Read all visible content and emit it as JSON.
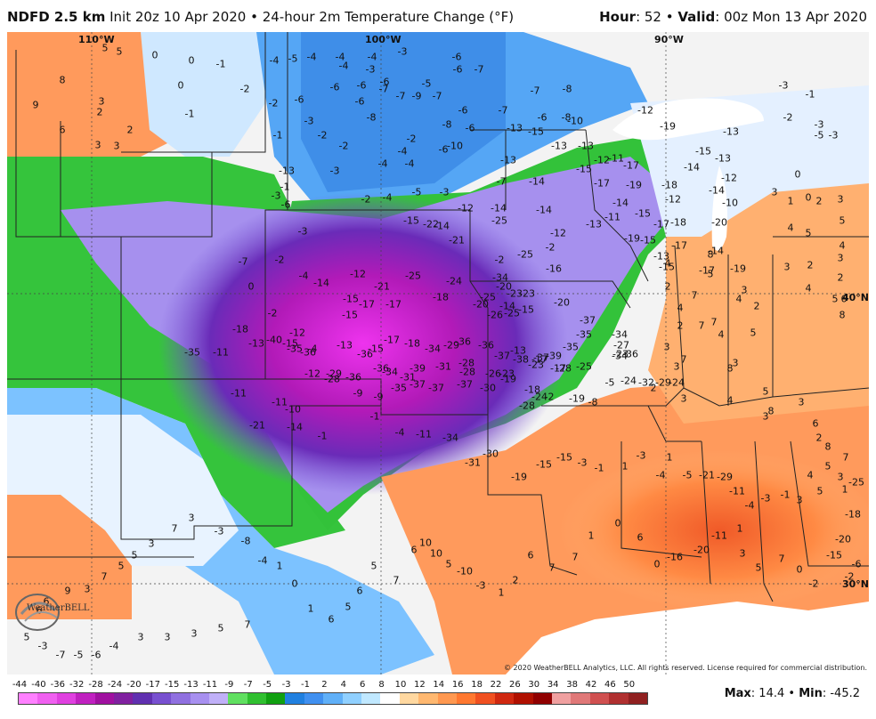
{
  "header": {
    "model": "NDFD 2.5 km",
    "desc": "Init 20z 10 Apr 2020 • 24-hour 2m Temperature Change (°F)",
    "hour_label": "Hour",
    "hour_value": ": 52 • ",
    "valid_label": "Valid",
    "valid_value": ": 00z Mon 13 Apr 2020"
  },
  "axes": {
    "lon_labels": [
      "110°W",
      "100°W",
      "90°W"
    ],
    "lat_labels": [
      "40°N",
      "30°N"
    ]
  },
  "logo_text": "WeatherBELL",
  "copyright": "© 2020 WeatherBELL Analytics, LLC. All rights reserved. License required for commercial distribution.",
  "stats": {
    "max_label": "Max",
    "max_value": ": 14.4 • ",
    "min_label": "Min",
    "min_value": ": -45.2"
  },
  "colorbar": {
    "ticks": [
      "-44",
      "-40",
      "-36",
      "-32",
      "-28",
      "-24",
      "-20",
      "-17",
      "-15",
      "-13",
      "-11",
      "-9",
      "-7",
      "-5",
      "-3",
      "-1",
      "2",
      "4",
      "6",
      "8",
      "10",
      "12",
      "14",
      "16",
      "18",
      "22",
      "26",
      "30",
      "34",
      "38",
      "42",
      "46",
      "50"
    ],
    "colors": [
      "#ff80ff",
      "#f060f0",
      "#e040e0",
      "#c020c0",
      "#a010a0",
      "#8020a0",
      "#6030b0",
      "#7850d0",
      "#9070e0",
      "#a890f0",
      "#c0b0f8",
      "#60e060",
      "#30c030",
      "#10a010",
      "#2080e0",
      "#4090f0",
      "#60b0f8",
      "#90d0ff",
      "#c0e8ff",
      "#ffffff",
      "#ffd8a0",
      "#ffb870",
      "#ff9850",
      "#ff7830",
      "#f05020",
      "#d02810",
      "#b01000",
      "#900000",
      "#f0a0a0",
      "#e07878",
      "#d05050",
      "#b03030",
      "#902020"
    ]
  },
  "map_values": [
    {
      "t": "5"
    },
    {
      "t": "5"
    },
    {
      "t": "0"
    },
    {
      "t": "0"
    },
    {
      "t": "-1"
    },
    {
      "t": "8"
    },
    {
      "t": "3"
    },
    {
      "t": "2"
    },
    {
      "t": "9"
    },
    {
      "t": "6"
    },
    {
      "t": "2"
    },
    {
      "t": "3"
    },
    {
      "t": "3"
    },
    {
      "t": "0"
    },
    {
      "t": "-1"
    },
    {
      "t": "-4"
    },
    {
      "t": "-5"
    },
    {
      "t": "-4"
    },
    {
      "t": "-4"
    },
    {
      "t": "-4"
    },
    {
      "t": "-3"
    },
    {
      "t": "-4"
    },
    {
      "t": "-3"
    },
    {
      "t": "-6"
    },
    {
      "t": "-6"
    },
    {
      "t": "-7"
    },
    {
      "t": "-6"
    },
    {
      "t": "-7"
    },
    {
      "t": "-5"
    },
    {
      "t": "-2"
    },
    {
      "t": "-6"
    },
    {
      "t": "-6"
    },
    {
      "t": "-6"
    },
    {
      "t": "-6"
    },
    {
      "t": "-8"
    },
    {
      "t": "-7"
    },
    {
      "t": "-9"
    },
    {
      "t": "-7"
    },
    {
      "t": "-8"
    },
    {
      "t": "-7"
    },
    {
      "t": "-7"
    },
    {
      "t": "-6"
    },
    {
      "t": "-6"
    },
    {
      "t": "-8"
    },
    {
      "t": "-12"
    },
    {
      "t": "-2"
    },
    {
      "t": "-3"
    },
    {
      "t": "-2"
    },
    {
      "t": "-1"
    },
    {
      "t": "-2"
    },
    {
      "t": "-2"
    },
    {
      "t": "-4"
    },
    {
      "t": "-6"
    },
    {
      "t": "-8"
    },
    {
      "t": "-13"
    },
    {
      "t": "-6"
    },
    {
      "t": "-10"
    },
    {
      "t": "-13"
    },
    {
      "t": "-10"
    },
    {
      "t": "-15"
    },
    {
      "t": "-13"
    },
    {
      "t": "-13"
    },
    {
      "t": "-12"
    },
    {
      "t": "-11"
    },
    {
      "t": "-17"
    },
    {
      "t": "-19"
    },
    {
      "t": "-15"
    },
    {
      "t": "-14"
    },
    {
      "t": "-13"
    },
    {
      "t": "-13"
    },
    {
      "t": "-12"
    },
    {
      "t": "-14"
    },
    {
      "t": "-10"
    },
    {
      "t": "-13"
    },
    {
      "t": "-3"
    },
    {
      "t": "-4"
    },
    {
      "t": "-4"
    },
    {
      "t": "-1"
    },
    {
      "t": "-3"
    },
    {
      "t": "-6"
    },
    {
      "t": "-2"
    },
    {
      "t": "-4"
    },
    {
      "t": "-5"
    },
    {
      "t": "-3"
    },
    {
      "t": "-7"
    },
    {
      "t": "-14"
    },
    {
      "t": "-15"
    },
    {
      "t": "-17"
    },
    {
      "t": "-19"
    },
    {
      "t": "-18"
    },
    {
      "t": "-12"
    },
    {
      "t": "-15"
    },
    {
      "t": "-14"
    },
    {
      "t": "-11"
    },
    {
      "t": "-14"
    },
    {
      "t": "-14"
    },
    {
      "t": "-12"
    },
    {
      "t": "-14"
    },
    {
      "t": "-15"
    },
    {
      "t": "-22"
    },
    {
      "t": "-21"
    },
    {
      "t": "-2"
    },
    {
      "t": "-25"
    },
    {
      "t": "-2"
    },
    {
      "t": "-16"
    },
    {
      "t": "-12"
    },
    {
      "t": "-13"
    },
    {
      "t": "-19"
    },
    {
      "t": "-15"
    },
    {
      "t": "-17"
    },
    {
      "t": "-18"
    },
    {
      "t": "-20"
    },
    {
      "t": "-17"
    },
    {
      "t": "-15"
    },
    {
      "t": "-13"
    },
    {
      "t": "-14"
    },
    {
      "t": "-17"
    },
    {
      "t": "-19"
    },
    {
      "t": "-25"
    },
    {
      "t": "-20"
    },
    {
      "t": "-23"
    },
    {
      "t": "-20"
    },
    {
      "t": "-25"
    },
    {
      "t": "-24"
    },
    {
      "t": "-25"
    },
    {
      "t": "-21"
    },
    {
      "t": "-12"
    },
    {
      "t": "-7"
    },
    {
      "t": "-3"
    },
    {
      "t": "-2"
    },
    {
      "t": "0"
    },
    {
      "t": "-2"
    },
    {
      "t": "-4"
    },
    {
      "t": "-14"
    },
    {
      "t": "-15"
    },
    {
      "t": "-15"
    },
    {
      "t": "-17"
    },
    {
      "t": "-17"
    },
    {
      "t": "-18"
    },
    {
      "t": "-20"
    },
    {
      "t": "-23"
    },
    {
      "t": "-34"
    },
    {
      "t": "-26"
    },
    {
      "t": "-25"
    },
    {
      "t": "-14"
    },
    {
      "t": "-15"
    },
    {
      "t": "-13"
    },
    {
      "t": "-17"
    },
    {
      "t": "-17"
    },
    {
      "t": "-25"
    },
    {
      "t": "-40"
    },
    {
      "t": "-35"
    },
    {
      "t": "-36"
    },
    {
      "t": "-29"
    },
    {
      "t": "-36"
    },
    {
      "t": "-34"
    },
    {
      "t": "-31"
    },
    {
      "t": "-29"
    },
    {
      "t": "-28"
    },
    {
      "t": "-26"
    },
    {
      "t": "-19"
    },
    {
      "t": "-23"
    },
    {
      "t": "-39"
    },
    {
      "t": "-35"
    },
    {
      "t": "-34"
    },
    {
      "t": "-36"
    },
    {
      "t": "-37"
    },
    {
      "t": "-35"
    },
    {
      "t": "-34"
    },
    {
      "t": "-27"
    },
    {
      "t": "-23"
    },
    {
      "t": "-18"
    },
    {
      "t": "-15"
    },
    {
      "t": "-4"
    },
    {
      "t": "-13"
    },
    {
      "t": "-15"
    },
    {
      "t": "-17"
    },
    {
      "t": "-18"
    },
    {
      "t": "-34"
    },
    {
      "t": "-36"
    },
    {
      "t": "-36"
    },
    {
      "t": "-37"
    },
    {
      "t": "-38"
    },
    {
      "t": "-37"
    },
    {
      "t": "-28"
    },
    {
      "t": "-35"
    },
    {
      "t": "-11"
    },
    {
      "t": "-13"
    },
    {
      "t": "-12"
    },
    {
      "t": "-12"
    },
    {
      "t": "-28"
    },
    {
      "t": "-36"
    },
    {
      "t": "-36"
    },
    {
      "t": "-39"
    },
    {
      "t": "-31"
    },
    {
      "t": "-28"
    },
    {
      "t": "-23"
    },
    {
      "t": "-18"
    },
    {
      "t": "-2"
    },
    {
      "t": "-11"
    },
    {
      "t": "-11"
    },
    {
      "t": "-10"
    },
    {
      "t": "-9"
    },
    {
      "t": "-9"
    },
    {
      "t": "-35"
    },
    {
      "t": "-37"
    },
    {
      "t": "-37"
    },
    {
      "t": "-37"
    },
    {
      "t": "-30"
    },
    {
      "t": "-28"
    },
    {
      "t": "-24"
    },
    {
      "t": "-19"
    },
    {
      "t": "-8"
    },
    {
      "t": "-5"
    },
    {
      "t": "-24"
    },
    {
      "t": "-32"
    },
    {
      "t": "-29"
    },
    {
      "t": "-24"
    },
    {
      "t": "-21"
    },
    {
      "t": "-14"
    },
    {
      "t": "-1"
    },
    {
      "t": "-1"
    },
    {
      "t": "-4"
    },
    {
      "t": "-11"
    },
    {
      "t": "-34"
    },
    {
      "t": "-31"
    },
    {
      "t": "-30"
    },
    {
      "t": "-19"
    },
    {
      "t": "-15"
    },
    {
      "t": "-15"
    },
    {
      "t": "-3"
    },
    {
      "t": "-1"
    },
    {
      "t": "1"
    },
    {
      "t": "-3"
    },
    {
      "t": "1"
    },
    {
      "t": "-4"
    },
    {
      "t": "-5"
    },
    {
      "t": "-21"
    },
    {
      "t": "-29"
    },
    {
      "t": "-11"
    },
    {
      "t": "-4"
    },
    {
      "t": "-3"
    },
    {
      "t": "-1"
    },
    {
      "t": "3"
    },
    {
      "t": "5"
    },
    {
      "t": "3"
    },
    {
      "t": "1"
    },
    {
      "t": "-25"
    },
    {
      "t": "-18"
    },
    {
      "t": "-20"
    },
    {
      "t": "-15"
    },
    {
      "t": "-6"
    },
    {
      "t": "-2"
    },
    {
      "t": "-2"
    },
    {
      "t": "0"
    },
    {
      "t": "7"
    },
    {
      "t": "5"
    },
    {
      "t": "3"
    },
    {
      "t": "1"
    },
    {
      "t": "-11"
    },
    {
      "t": "-20"
    },
    {
      "t": "-16"
    },
    {
      "t": "0"
    },
    {
      "t": "6"
    },
    {
      "t": "0"
    },
    {
      "t": "1"
    },
    {
      "t": "7"
    },
    {
      "t": "7"
    },
    {
      "t": "6"
    },
    {
      "t": "2"
    },
    {
      "t": "1"
    },
    {
      "t": "-3"
    },
    {
      "t": "-10"
    },
    {
      "t": "5"
    },
    {
      "t": "10"
    },
    {
      "t": "10"
    },
    {
      "t": "6"
    },
    {
      "t": "7"
    },
    {
      "t": "5"
    },
    {
      "t": "6"
    },
    {
      "t": "5"
    },
    {
      "t": "6"
    },
    {
      "t": "1"
    },
    {
      "t": "0"
    },
    {
      "t": "1"
    },
    {
      "t": "-4"
    },
    {
      "t": "-8"
    },
    {
      "t": "-3"
    },
    {
      "t": "3"
    },
    {
      "t": "7"
    },
    {
      "t": "3"
    },
    {
      "t": "5"
    },
    {
      "t": "5"
    },
    {
      "t": "7"
    },
    {
      "t": "3"
    },
    {
      "t": "9"
    },
    {
      "t": "6"
    },
    {
      "t": "6"
    },
    {
      "t": "5"
    },
    {
      "t": "-3"
    },
    {
      "t": "-7"
    },
    {
      "t": "-5"
    },
    {
      "t": "-6"
    },
    {
      "t": "-4"
    },
    {
      "t": "3"
    },
    {
      "t": "3"
    },
    {
      "t": "3"
    },
    {
      "t": "5"
    },
    {
      "t": "7"
    },
    {
      "t": "6"
    },
    {
      "t": "8"
    },
    {
      "t": "10"
    },
    {
      "t": "11"
    },
    {
      "t": "10"
    },
    {
      "t": "8"
    },
    {
      "t": "-4"
    },
    {
      "t": "0"
    },
    {
      "t": "1"
    },
    {
      "t": "2"
    },
    {
      "t": "3"
    },
    {
      "t": "3"
    },
    {
      "t": "8"
    },
    {
      "t": "6"
    },
    {
      "t": "4"
    },
    {
      "t": "8"
    },
    {
      "t": "9"
    },
    {
      "t": "8"
    },
    {
      "t": "8"
    },
    {
      "t": "3"
    },
    {
      "t": "-3"
    },
    {
      "t": "0"
    },
    {
      "t": "1"
    },
    {
      "t": "3"
    },
    {
      "t": "2"
    },
    {
      "t": "5"
    },
    {
      "t": "6"
    },
    {
      "t": "5"
    },
    {
      "t": "3"
    },
    {
      "t": "3"
    },
    {
      "t": "8"
    },
    {
      "t": "30°"
    },
    {
      "t": "0"
    },
    {
      "t": "-2"
    },
    {
      "t": "-1"
    },
    {
      "t": "2"
    },
    {
      "t": "3"
    },
    {
      "t": "3"
    },
    {
      "t": "3"
    },
    {
      "t": "3"
    },
    {
      "t": "3"
    },
    {
      "t": "5"
    },
    {
      "t": "-3"
    },
    {
      "t": "-1"
    },
    {
      "t": "-1"
    },
    {
      "t": "0"
    },
    {
      "t": "-1"
    },
    {
      "t": "0"
    },
    {
      "t": "-3"
    },
    {
      "t": "1"
    },
    {
      "t": "2"
    },
    {
      "t": "2"
    },
    {
      "t": "0"
    },
    {
      "t": "-1"
    },
    {
      "t": "-3"
    },
    {
      "t": "0"
    },
    {
      "t": "3"
    },
    {
      "t": "1"
    },
    {
      "t": "-3"
    }
  ],
  "east_values": [
    {
      "t": "-3"
    },
    {
      "t": "-2"
    },
    {
      "t": "-1"
    },
    {
      "t": "-3"
    },
    {
      "t": "-5"
    },
    {
      "t": "-3"
    },
    {
      "t": "0"
    },
    {
      "t": "1"
    },
    {
      "t": "0"
    },
    {
      "t": "3"
    },
    {
      "t": "2"
    },
    {
      "t": "3"
    },
    {
      "t": "4"
    },
    {
      "t": "5"
    },
    {
      "t": "5"
    },
    {
      "t": "4"
    },
    {
      "t": "3"
    },
    {
      "t": "2"
    },
    {
      "t": "3"
    },
    {
      "t": "2"
    },
    {
      "t": "4"
    },
    {
      "t": "5"
    },
    {
      "t": "6"
    },
    {
      "t": "8"
    },
    {
      "t": "3"
    },
    {
      "t": "2"
    },
    {
      "t": "4"
    },
    {
      "t": "7"
    },
    {
      "t": "4"
    },
    {
      "t": "8"
    },
    {
      "t": "3"
    },
    {
      "t": "5"
    },
    {
      "t": "2"
    },
    {
      "t": "7"
    },
    {
      "t": "7"
    },
    {
      "t": "5"
    },
    {
      "t": "4"
    },
    {
      "t": "2"
    },
    {
      "t": "8"
    },
    {
      "t": "4"
    },
    {
      "t": "3"
    },
    {
      "t": "3"
    },
    {
      "t": "7"
    },
    {
      "t": "2"
    },
    {
      "t": "3"
    },
    {
      "t": "4"
    },
    {
      "t": "5"
    },
    {
      "t": "3"
    },
    {
      "t": "3"
    },
    {
      "t": "8"
    },
    {
      "t": "6"
    },
    {
      "t": "2"
    },
    {
      "t": "8"
    },
    {
      "t": "7"
    },
    {
      "t": "5"
    },
    {
      "t": "4"
    }
  ]
}
